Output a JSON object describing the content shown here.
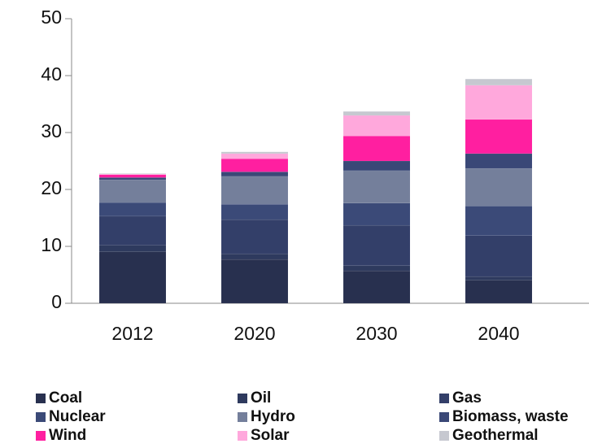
{
  "chart_data": {
    "type": "bar",
    "stacked": true,
    "categories": [
      "2012",
      "2020",
      "2030",
      "2040"
    ],
    "ylim": [
      0,
      50
    ],
    "yticks": [
      0,
      10,
      20,
      30,
      40,
      50
    ],
    "series": [
      {
        "name": "Coal",
        "color": "#28304f",
        "values": [
          9.1,
          7.7,
          5.7,
          4.1
        ]
      },
      {
        "name": "Oil",
        "color": "#2e3a5e",
        "values": [
          1.1,
          1.0,
          0.9,
          0.6
        ]
      },
      {
        "name": "Gas",
        "color": "#333f69",
        "values": [
          5.1,
          6.0,
          7.1,
          7.2
        ]
      },
      {
        "name": "Nuclear",
        "color": "#3b4a78",
        "values": [
          2.4,
          2.7,
          3.9,
          5.2
        ]
      },
      {
        "name": "Hydro",
        "color": "#747f9b",
        "values": [
          4.0,
          4.9,
          5.7,
          6.6
        ]
      },
      {
        "name": "Biomass, waste",
        "color": "#3a4877",
        "values": [
          0.4,
          0.8,
          1.7,
          2.6
        ]
      },
      {
        "name": "Wind",
        "color": "#ff1fa0",
        "values": [
          0.5,
          2.3,
          4.4,
          6.0
        ]
      },
      {
        "name": "Solar",
        "color": "#ffa8dc",
        "values": [
          0.1,
          0.9,
          3.6,
          6.0
        ]
      },
      {
        "name": "Geothermal",
        "color": "#c6c8d0",
        "values": [
          0.1,
          0.3,
          0.7,
          1.1
        ]
      }
    ]
  }
}
